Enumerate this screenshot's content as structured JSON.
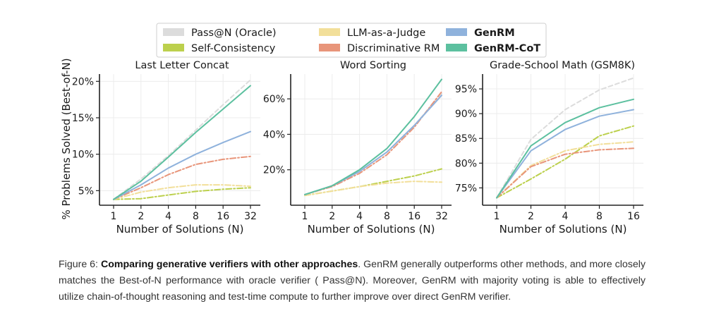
{
  "legend": [
    {
      "label": "Pass@N (Oracle)",
      "color": "#dcdcdc",
      "bold": false
    },
    {
      "label": "Self-Consistency",
      "color": "#bcd04d",
      "bold": false
    },
    {
      "label": "LLM-as-a-Judge",
      "color": "#f2df9a",
      "bold": false
    },
    {
      "label": "Discriminative RM",
      "color": "#e8957a",
      "bold": false
    },
    {
      "label": "GenRM",
      "color": "#8fb2dc",
      "bold": true
    },
    {
      "label": "GenRM-CoT",
      "color": "#5cc09f",
      "bold": true
    }
  ],
  "y_axis_label": "% Problems Solved (Best-of-N)",
  "chart_data": [
    {
      "type": "line",
      "title": "Last Letter Concat",
      "xlabel": "Number of Solutions (N)",
      "x_ticks": [
        "1",
        "2",
        "4",
        "8",
        "16",
        "32"
      ],
      "x": [
        1,
        2,
        4,
        8,
        16,
        32
      ],
      "y_ticks": [
        "5%",
        "10%",
        "15%",
        "20%"
      ],
      "y_tick_values": [
        5,
        10,
        15,
        20
      ],
      "ylim": [
        3,
        21
      ],
      "grid": true,
      "series": [
        {
          "name": "Pass@N (Oracle)",
          "color": "#dcdcdc",
          "dash": "6,4",
          "values": [
            3.8,
            6.6,
            9.8,
            13.3,
            16.8,
            20.2
          ]
        },
        {
          "name": "Self-Consistency",
          "color": "#bcd04d",
          "dash": "8,3,2,3",
          "values": [
            3.8,
            3.9,
            4.4,
            4.9,
            5.2,
            5.4
          ]
        },
        {
          "name": "LLM-as-a-Judge",
          "color": "#f2df9a",
          "dash": "8,3,2,3",
          "values": [
            3.8,
            4.8,
            5.4,
            5.8,
            5.8,
            5.6
          ]
        },
        {
          "name": "Discriminative RM",
          "color": "#e8957a",
          "dash": "8,3,2,3",
          "values": [
            3.8,
            5.4,
            7.2,
            8.6,
            9.3,
            9.7
          ]
        },
        {
          "name": "GenRM",
          "color": "#8fb2dc",
          "dash": "",
          "values": [
            3.8,
            5.8,
            8.1,
            10.0,
            11.6,
            13.1
          ]
        },
        {
          "name": "GenRM-CoT",
          "color": "#5cc09f",
          "dash": "",
          "values": [
            3.8,
            6.3,
            9.6,
            13.0,
            16.2,
            19.4
          ]
        }
      ]
    },
    {
      "type": "line",
      "title": "Word Sorting",
      "xlabel": "Number of Solutions (N)",
      "x_ticks": [
        "1",
        "2",
        "4",
        "8",
        "16",
        "32"
      ],
      "x": [
        1,
        2,
        4,
        8,
        16,
        32
      ],
      "y_ticks": [
        "20%",
        "40%",
        "60%"
      ],
      "y_tick_values": [
        20,
        40,
        60
      ],
      "ylim": [
        0,
        74
      ],
      "grid": true,
      "series": [
        {
          "name": "Pass@N (Oracle)",
          "color": "#dcdcdc",
          "dash": "6,4",
          "values": [
            6,
            11,
            19,
            30,
            45,
            63
          ]
        },
        {
          "name": "Self-Consistency",
          "color": "#bcd04d",
          "dash": "8,3,2,3",
          "values": [
            5.5,
            8,
            10.5,
            13.5,
            16.5,
            20.5
          ]
        },
        {
          "name": "LLM-as-a-Judge",
          "color": "#f2df9a",
          "dash": "8,3,2,3",
          "values": [
            5.5,
            8,
            10.5,
            12.5,
            13.5,
            13
          ]
        },
        {
          "name": "Discriminative RM",
          "color": "#e8957a",
          "dash": "8,3,2,3",
          "values": [
            6,
            10.5,
            18,
            28.5,
            44,
            64
          ]
        },
        {
          "name": "GenRM",
          "color": "#8fb2dc",
          "dash": "",
          "values": [
            6,
            11,
            19,
            30,
            45,
            62
          ]
        },
        {
          "name": "GenRM-CoT",
          "color": "#5cc09f",
          "dash": "",
          "values": [
            6,
            11,
            20,
            32,
            50,
            71
          ]
        }
      ]
    },
    {
      "type": "line",
      "title": "Grade-School Math (GSM8K)",
      "xlabel": "Number of Solutions (N)",
      "x_ticks": [
        "1",
        "2",
        "4",
        "8",
        "16"
      ],
      "x": [
        1,
        2,
        4,
        8,
        16
      ],
      "y_ticks": [
        "75%",
        "80%",
        "85%",
        "90%",
        "95%"
      ],
      "y_tick_values": [
        75,
        80,
        85,
        90,
        95
      ],
      "ylim": [
        71.5,
        98
      ],
      "grid": true,
      "series": [
        {
          "name": "Pass@N (Oracle)",
          "color": "#dcdcdc",
          "dash": "6,4",
          "values": [
            73,
            84.8,
            90.8,
            94.8,
            97.2
          ]
        },
        {
          "name": "Self-Consistency",
          "color": "#bcd04d",
          "dash": "8,3,2,3",
          "values": [
            73,
            76.8,
            80.8,
            85.5,
            87.5
          ]
        },
        {
          "name": "LLM-as-a-Judge",
          "color": "#f2df9a",
          "dash": "8,3,2,3",
          "values": [
            73,
            79.5,
            82.5,
            83.8,
            84.3
          ]
        },
        {
          "name": "Discriminative RM",
          "color": "#e8957a",
          "dash": "8,3,2,3",
          "values": [
            73,
            79.3,
            81.8,
            82.7,
            83.0
          ]
        },
        {
          "name": "GenRM",
          "color": "#8fb2dc",
          "dash": "",
          "values": [
            73,
            82.5,
            86.8,
            89.5,
            90.8
          ]
        },
        {
          "name": "GenRM-CoT",
          "color": "#5cc09f",
          "dash": "",
          "values": [
            73,
            83.5,
            88.2,
            91.2,
            92.9
          ]
        }
      ]
    }
  ],
  "caption": {
    "figure_label": "Figure 6:",
    "bold_title": "Comparing generative verifiers with other approaches",
    "body": ". GenRM generally outperforms other methods, and more closely matches the Best-of-N performance with oracle verifier ( Pass@N). Moreover, GenRM with majority voting is able to effectively utilize chain-of-thought reasoning and test-time compute to further improve over direct GenRM verifier."
  }
}
